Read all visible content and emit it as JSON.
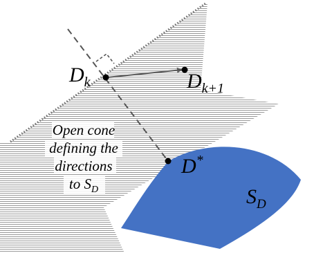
{
  "labels": {
    "dk": {
      "base": "D",
      "sub": "k"
    },
    "dk1": {
      "base": "D",
      "sub": "k+1"
    },
    "dstar": {
      "base": "D",
      "sup": "*"
    },
    "sd": {
      "base": "S",
      "sub": "D"
    }
  },
  "caption": {
    "line1": "Open cone",
    "line2": "defining the",
    "line3": "directions",
    "line4_prefix": "to S",
    "line4_sub": "D"
  },
  "colors": {
    "region_fill": "#4472C4",
    "hatch": "#8c8c8c",
    "boundary_dots": "#6e6e6e",
    "dashed_line": "#555555",
    "arrow": "#595959",
    "point": "#000000"
  }
}
